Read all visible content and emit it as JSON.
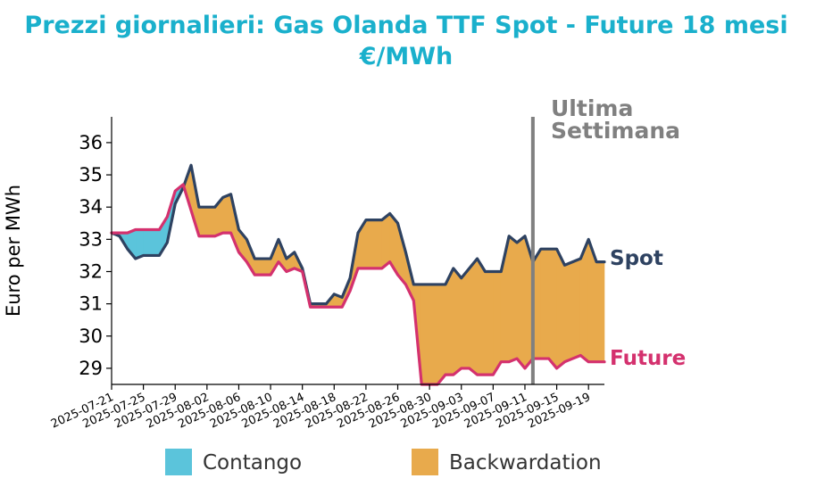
{
  "chart_data": {
    "type": "area",
    "title": "Prezzi giornalieri: Gas Olanda TTF Spot - Future 18 mesi",
    "subtitle": "€/MWh",
    "xlabel": "",
    "ylabel": "Euro per MWh",
    "ylim": [
      28.5,
      36.8
    ],
    "yticks": [
      29,
      30,
      31,
      32,
      33,
      34,
      35,
      36
    ],
    "xticks": [
      "2025-07-21",
      "2025-07-25",
      "2025-07-29",
      "2025-08-02",
      "2025-08-06",
      "2025-08-10",
      "2025-08-14",
      "2025-08-18",
      "2025-08-22",
      "2025-08-26",
      "2025-08-30",
      "2025-09-03",
      "2025-09-07",
      "2025-09-11",
      "2025-09-15",
      "2025-09-19"
    ],
    "x": [
      "2025-07-21",
      "2025-07-22",
      "2025-07-23",
      "2025-07-24",
      "2025-07-25",
      "2025-07-26",
      "2025-07-27",
      "2025-07-28",
      "2025-07-29",
      "2025-07-30",
      "2025-07-31",
      "2025-08-01",
      "2025-08-02",
      "2025-08-03",
      "2025-08-04",
      "2025-08-05",
      "2025-08-06",
      "2025-08-07",
      "2025-08-08",
      "2025-08-09",
      "2025-08-10",
      "2025-08-11",
      "2025-08-12",
      "2025-08-13",
      "2025-08-14",
      "2025-08-15",
      "2025-08-16",
      "2025-08-17",
      "2025-08-18",
      "2025-08-19",
      "2025-08-20",
      "2025-08-21",
      "2025-08-22",
      "2025-08-23",
      "2025-08-24",
      "2025-08-25",
      "2025-08-26",
      "2025-08-27",
      "2025-08-28",
      "2025-08-29",
      "2025-08-30",
      "2025-08-31",
      "2025-09-01",
      "2025-09-02",
      "2025-09-03",
      "2025-09-04",
      "2025-09-05",
      "2025-09-06",
      "2025-09-07",
      "2025-09-08",
      "2025-09-09",
      "2025-09-10",
      "2025-09-11",
      "2025-09-12",
      "2025-09-13",
      "2025-09-14",
      "2025-09-15",
      "2025-09-16",
      "2025-09-17",
      "2025-09-18",
      "2025-09-19",
      "2025-09-20",
      "2025-09-21"
    ],
    "series": [
      {
        "name": "Spot",
        "color": "#2e4261",
        "values": [
          33.2,
          33.1,
          32.7,
          32.4,
          32.5,
          32.5,
          32.5,
          32.9,
          34.1,
          34.6,
          35.3,
          34.0,
          34.0,
          34.0,
          34.3,
          34.4,
          33.3,
          33.0,
          32.4,
          32.4,
          32.4,
          33.0,
          32.4,
          32.6,
          32.1,
          31.0,
          31.0,
          31.0,
          31.3,
          31.2,
          31.8,
          33.2,
          33.6,
          33.6,
          33.6,
          33.8,
          33.5,
          32.6,
          31.6,
          31.6,
          31.6,
          31.6,
          31.6,
          32.1,
          31.8,
          32.1,
          32.4,
          32.0,
          32.0,
          32.0,
          33.1,
          32.9,
          33.1,
          32.3,
          32.7,
          32.7,
          32.7,
          32.2,
          32.3,
          32.4,
          33.0,
          32.3,
          32.3
        ]
      },
      {
        "name": "Future",
        "color": "#d4316e",
        "values": [
          33.2,
          33.2,
          33.2,
          33.3,
          33.3,
          33.3,
          33.3,
          33.7,
          34.5,
          34.7,
          33.9,
          33.1,
          33.1,
          33.1,
          33.2,
          33.2,
          32.6,
          32.3,
          31.9,
          31.9,
          31.9,
          32.3,
          32.0,
          32.1,
          32.0,
          30.9,
          30.9,
          30.9,
          30.9,
          30.9,
          31.4,
          32.1,
          32.1,
          32.1,
          32.1,
          32.3,
          31.9,
          31.6,
          31.1,
          28.5,
          28.5,
          28.5,
          28.8,
          28.8,
          29.0,
          29.0,
          28.8,
          28.8,
          28.8,
          29.2,
          29.2,
          29.3,
          29.0,
          29.3,
          29.3,
          29.3,
          29.0,
          29.2,
          29.3,
          29.4,
          29.2,
          29.2,
          29.2
        ]
      }
    ],
    "fills": {
      "contango": {
        "label": "Contango",
        "color": "#5bc4db"
      },
      "backwardation": {
        "label": "Backwardation",
        "color": "#e8aa4c"
      }
    },
    "annotations": {
      "last_week_label_line1": "Ultima",
      "last_week_label_line2": "Settimana",
      "last_week_date": "2025-09-12",
      "spot_label": "Spot",
      "future_label": "Future"
    },
    "legend": [
      "Contango",
      "Backwardation"
    ],
    "legend_position": "bottom",
    "grid": false
  }
}
